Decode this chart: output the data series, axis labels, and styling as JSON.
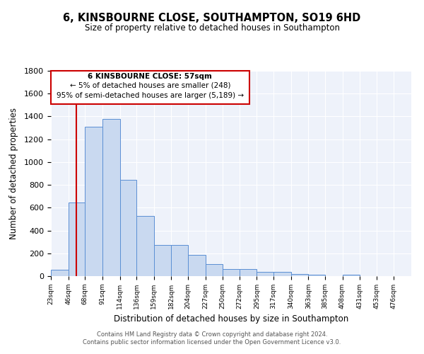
{
  "title": "6, KINSBOURNE CLOSE, SOUTHAMPTON, SO19 6HD",
  "subtitle": "Size of property relative to detached houses in Southampton",
  "xlabel": "Distribution of detached houses by size in Southampton",
  "ylabel": "Number of detached properties",
  "footer_line1": "Contains HM Land Registry data © Crown copyright and database right 2024.",
  "footer_line2": "Contains public sector information licensed under the Open Government Licence v3.0.",
  "bin_labels": [
    "23sqm",
    "46sqm",
    "68sqm",
    "91sqm",
    "114sqm",
    "136sqm",
    "159sqm",
    "182sqm",
    "204sqm",
    "227sqm",
    "250sqm",
    "272sqm",
    "295sqm",
    "317sqm",
    "340sqm",
    "363sqm",
    "385sqm",
    "408sqm",
    "431sqm",
    "453sqm",
    "476sqm"
  ],
  "bar_values": [
    55,
    645,
    1310,
    1375,
    845,
    530,
    275,
    275,
    185,
    105,
    65,
    65,
    37,
    35,
    20,
    10,
    0,
    10,
    0,
    0,
    0
  ],
  "bar_color": "#c9d9f0",
  "bar_edge_color": "#5b8fd4",
  "bg_color": "#eef2fa",
  "grid_color": "#ffffff",
  "annotation_box_color": "#cc0000",
  "annotation_text_line1": "6 KINSBOURNE CLOSE: 57sqm",
  "annotation_text_line2": "← 5% of detached houses are smaller (248)",
  "annotation_text_line3": "95% of semi-detached houses are larger (5,189) →",
  "vline_x": 57,
  "vline_color": "#cc0000",
  "ylim": [
    0,
    1800
  ],
  "yticks": [
    0,
    200,
    400,
    600,
    800,
    1000,
    1200,
    1400,
    1600,
    1800
  ],
  "bin_edges": [
    23,
    46,
    68,
    91,
    114,
    136,
    159,
    182,
    204,
    227,
    250,
    272,
    295,
    317,
    340,
    363,
    385,
    408,
    431,
    453,
    476,
    499
  ]
}
